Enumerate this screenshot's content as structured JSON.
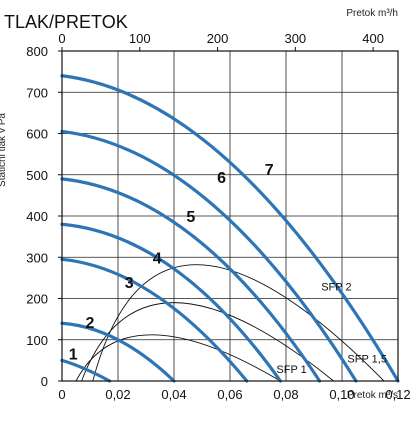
{
  "chart_data": {
    "type": "line",
    "title": "TLAK/PRETOK",
    "xlabel": "Pretok m³/s",
    "x2label": "Pretok m³/h",
    "ylabel": "Statični tlak v Pa",
    "xlim": [
      0,
      0.12
    ],
    "x2lim": [
      0,
      432
    ],
    "ylim": [
      0,
      800
    ],
    "grid": true,
    "xticks": [
      "0",
      "0,02",
      "0,04",
      "0,06",
      "0,08",
      "0,10",
      "0,12"
    ],
    "x2ticks": [
      "0",
      "100",
      "200",
      "300",
      "400"
    ],
    "yticks": [
      "0",
      "100",
      "200",
      "300",
      "400",
      "500",
      "600",
      "700",
      "800"
    ],
    "curve_color": "#2e75b6",
    "series": [
      {
        "name": "1",
        "x": [
          0,
          0.008,
          0.017
        ],
        "y": [
          50,
          30,
          0
        ]
      },
      {
        "name": "2",
        "x": [
          0,
          0.02,
          0.04
        ],
        "y": [
          140,
          100,
          0
        ]
      },
      {
        "name": "3",
        "x": [
          0,
          0.033,
          0.066
        ],
        "y": [
          295,
          210,
          0
        ]
      },
      {
        "name": "4",
        "x": [
          0,
          0.04,
          0.078
        ],
        "y": [
          380,
          272,
          0
        ]
      },
      {
        "name": "5",
        "x": [
          0,
          0.047,
          0.092
        ],
        "y": [
          490,
          350,
          0
        ]
      },
      {
        "name": "6",
        "x": [
          0,
          0.053,
          0.105
        ],
        "y": [
          605,
          432,
          0
        ]
      },
      {
        "name": "7",
        "x": [
          0,
          0.06,
          0.12
        ],
        "y": [
          740,
          530,
          0
        ]
      }
    ],
    "sfp_curves": [
      {
        "name": "SFP 1",
        "x": [
          0.005,
          0.032,
          0.078
        ],
        "y": [
          0,
          112,
          0
        ]
      },
      {
        "name": "SFP 1,5",
        "x": [
          0.007,
          0.04,
          0.097
        ],
        "y": [
          0,
          190,
          0
        ]
      },
      {
        "name": "SFP 2",
        "x": [
          0.011,
          0.048,
          0.115
        ],
        "y": [
          0,
          282,
          0
        ]
      }
    ],
    "sfp_labels": [
      {
        "text": "SFP 2",
        "x": 0.098,
        "y": 220
      },
      {
        "text": "SFP 1,5",
        "x": 0.109,
        "y": 45
      },
      {
        "text": "SFP 1",
        "x": 0.082,
        "y": 20
      }
    ]
  }
}
